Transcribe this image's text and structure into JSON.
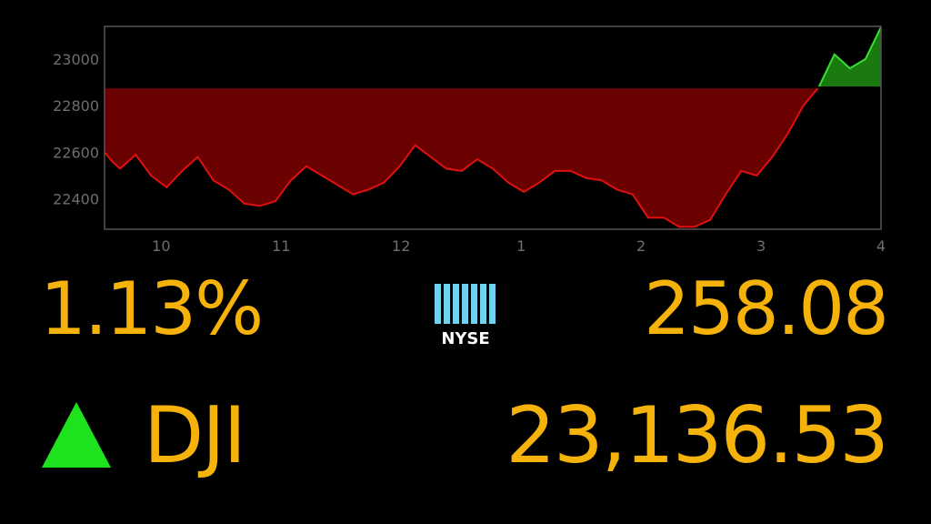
{
  "chart_data": {
    "type": "area",
    "x_tick_labels": [
      "10",
      "11",
      "12",
      "1",
      "2",
      "3",
      "4"
    ],
    "y_tick_labels": [
      "22400",
      "22600",
      "22800",
      "23000"
    ],
    "y_ticks": [
      22400,
      22600,
      22800,
      23000
    ],
    "ylim": [
      22270,
      23140
    ],
    "baseline": 22878,
    "colors": {
      "down_fill": "#6b0000",
      "down_line": "#e01010",
      "up_fill": "#1a7a10",
      "up_line": "#33e033",
      "axis": "#555555"
    },
    "series": [
      {
        "x": [
          0,
          0.01,
          0.02,
          0.04,
          0.06,
          0.08,
          0.1,
          0.12,
          0.14,
          0.16,
          0.18,
          0.2,
          0.22,
          0.24,
          0.26,
          0.28,
          0.3,
          0.32,
          0.34,
          0.36,
          0.38,
          0.4,
          0.42,
          0.44,
          0.46,
          0.48,
          0.5,
          0.52,
          0.54,
          0.56,
          0.58,
          0.6,
          0.62,
          0.64,
          0.66,
          0.68,
          0.7,
          0.72,
          0.74,
          0.76,
          0.78,
          0.8,
          0.82,
          0.84,
          0.86,
          0.88,
          0.9,
          0.92,
          0.94,
          0.96,
          0.98,
          1.0
        ],
        "values": [
          22600,
          22560,
          22530,
          22590,
          22500,
          22450,
          22520,
          22580,
          22480,
          22440,
          22380,
          22370,
          22390,
          22480,
          22540,
          22500,
          22460,
          22420,
          22440,
          22470,
          22540,
          22630,
          22580,
          22530,
          22520,
          22570,
          22530,
          22470,
          22430,
          22470,
          22520,
          22520,
          22490,
          22480,
          22440,
          22420,
          22320,
          22320,
          22280,
          22280,
          22310,
          22420,
          22520,
          22500,
          22580,
          22680,
          22800,
          22880,
          23020,
          22960,
          23000,
          23136
        ]
      }
    ]
  },
  "summary": {
    "percent_change": "1.13%",
    "point_change": "258.08",
    "exchange_logo_text": "NYSE",
    "ticker": "DJI",
    "index_value": "23,136.53",
    "direction": "up"
  }
}
